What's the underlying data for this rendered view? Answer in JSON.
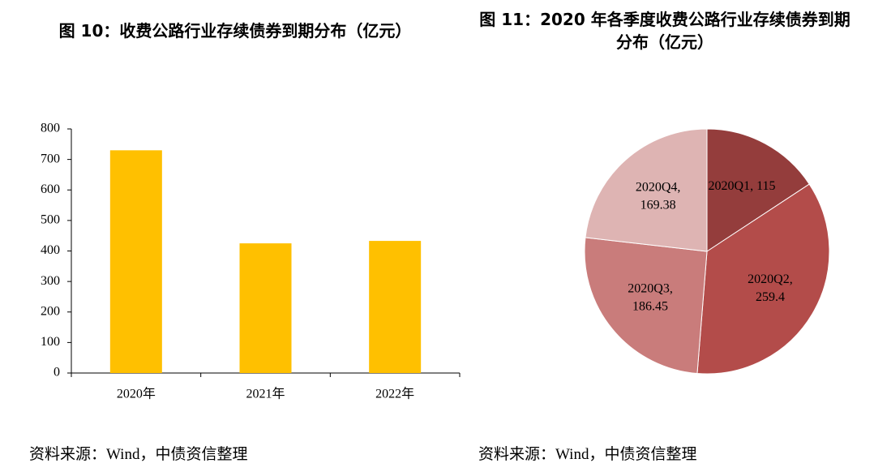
{
  "chart_data": [
    {
      "type": "bar",
      "title": "图 10：收费公路行业存续债券到期分布（亿元）",
      "categories": [
        "2020年",
        "2021年",
        "2022年"
      ],
      "values": [
        730,
        425,
        433
      ],
      "color": "#ffc000",
      "ylim": [
        0,
        800
      ],
      "yticks": [
        0,
        100,
        200,
        300,
        400,
        500,
        600,
        700,
        800
      ],
      "source": "资料来源：Wind，中债资信整理"
    },
    {
      "type": "pie",
      "title": "图 11：2020 年各季度收费公路行业存续债券到期分布（亿元）",
      "values": [
        115,
        259.4,
        186.45,
        169.38
      ],
      "value_labels": [
        "2020Q1, 115",
        "2020Q2,\n259.4",
        "2020Q3,\n186.45",
        "2020Q4,\n169.38"
      ],
      "colors": [
        "#943d3c",
        "#b34c4a",
        "#c97c7b",
        "#deb4b3"
      ],
      "source": "资料来源：Wind，中债资信整理"
    }
  ]
}
